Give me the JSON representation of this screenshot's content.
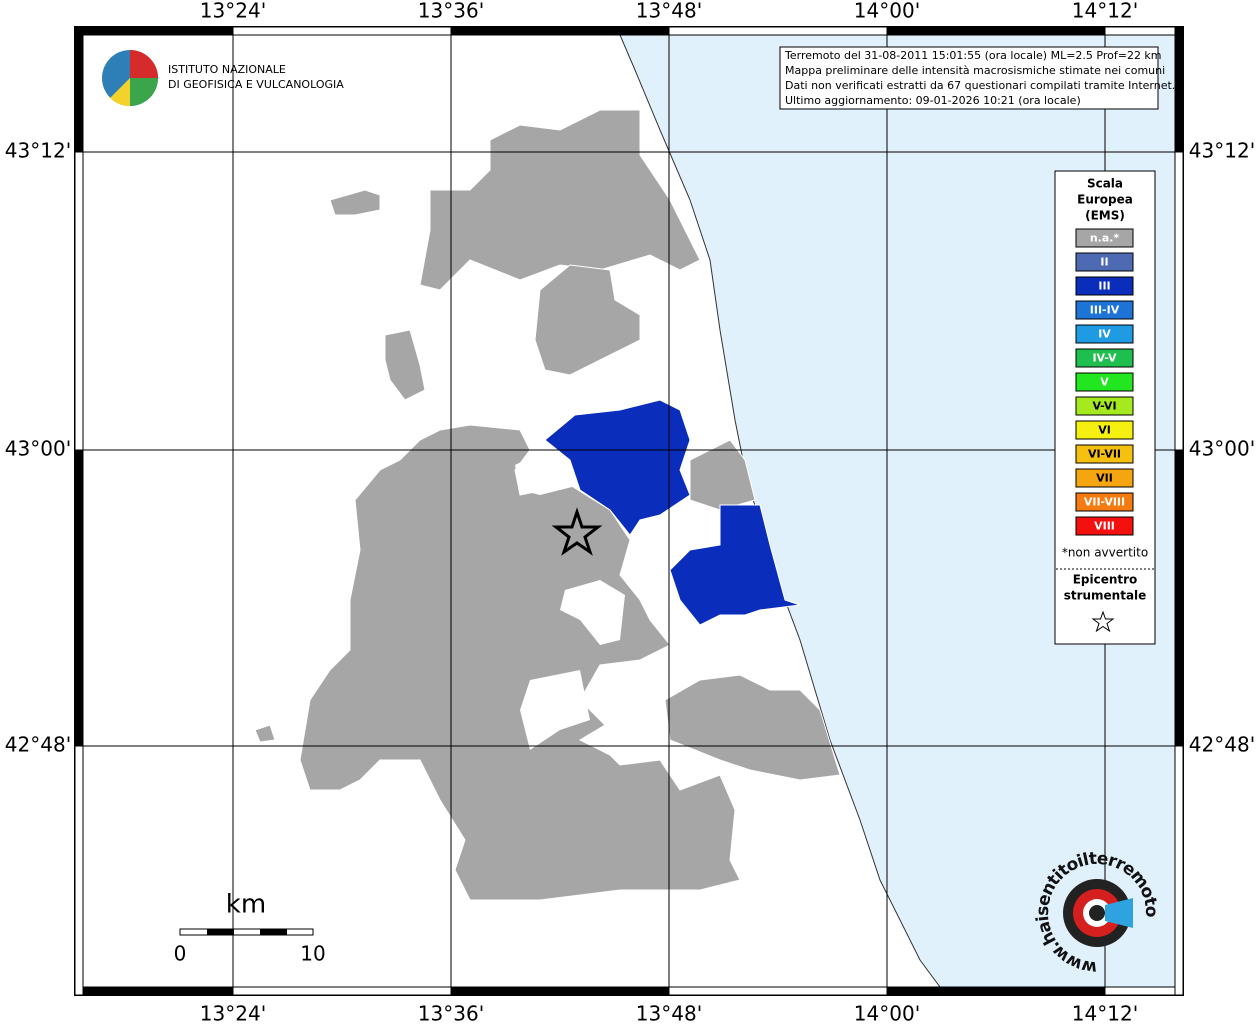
{
  "map": {
    "lon_labels": [
      "13°24'",
      "13°36'",
      "13°48'",
      "14°00'",
      "14°12'"
    ],
    "lat_labels": [
      "43°12'",
      "43°00'",
      "42°48'"
    ],
    "logo": [
      "ISTITUTO NAZIONALE",
      "DI GEOFISICA E VULCANOLOGIA"
    ],
    "info": [
      "Terremoto del 31-08-2011 15:01:55 (ora locale) ML=2.5 Prof=22 km",
      "Mappa preliminare delle intensità macrosismiche stimate nei comuni",
      "Dati non verificati estratti da 67 questionari compilati tramite Internet.",
      "Ultimo aggiornamento: 09-01-2026 10:21 (ora locale)"
    ],
    "legend": {
      "title": [
        "Scala",
        "Europea",
        "(EMS)"
      ],
      "items": [
        {
          "label": "n.a.*",
          "color": "#a6a6a6"
        },
        {
          "label": "II",
          "color": "#4d6ab3"
        },
        {
          "label": "III",
          "color": "#0a2dbb"
        },
        {
          "label": "III-IV",
          "color": "#1e73d6"
        },
        {
          "label": "IV",
          "color": "#1f9be3"
        },
        {
          "label": "IV-V",
          "color": "#1fbf4f"
        },
        {
          "label": "V",
          "color": "#22e61f"
        },
        {
          "label": "V-VI",
          "color": "#a5ea1f"
        },
        {
          "label": "VI",
          "color": "#f5f010"
        },
        {
          "label": "VI-VII",
          "color": "#f5c010"
        },
        {
          "label": "VII",
          "color": "#f5a510"
        },
        {
          "label": "VII-VIII",
          "color": "#f57a10"
        },
        {
          "label": "VIII",
          "color": "#f51010"
        }
      ],
      "note": "*non avvertito",
      "epicenter": [
        "Epicentro",
        "strumentale"
      ]
    },
    "scale": {
      "unit": "km",
      "labels": [
        "0",
        "10"
      ]
    },
    "site": "www.haisentitoilterremoto.it"
  }
}
